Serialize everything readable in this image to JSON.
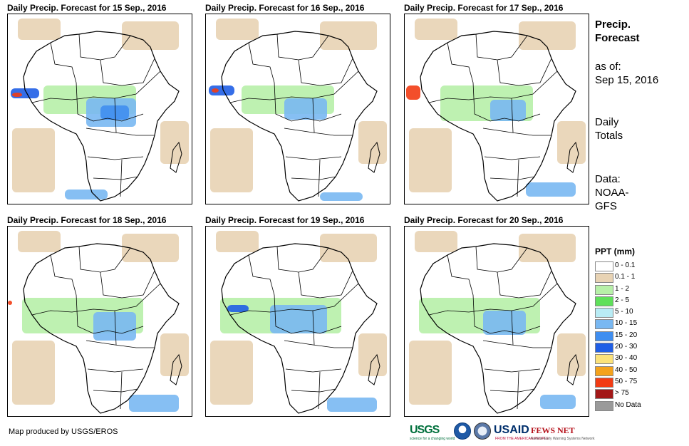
{
  "panels": [
    {
      "title": "Daily Precip. Forecast for 15 Sep., 2016"
    },
    {
      "title": "Daily Precip. Forecast for 16 Sep., 2016"
    },
    {
      "title": "Daily Precip. Forecast for 17 Sep., 2016"
    },
    {
      "title": "Daily Precip. Forecast for 18 Sep., 2016"
    },
    {
      "title": "Daily Precip. Forecast for 19 Sep., 2016"
    },
    {
      "title": "Daily Precip. Forecast for 20 Sep., 2016"
    }
  ],
  "side": {
    "heading_line1": "Precip.",
    "heading_line2": "Forecast",
    "asof_label": "as of:",
    "asof_date": "Sep 15, 2016",
    "totals_line1": "Daily",
    "totals_line2": "Totals",
    "data_line1": "Data:",
    "data_line2": "NOAA-",
    "data_line3": "GFS"
  },
  "legend": {
    "title": "PPT (mm)",
    "items": [
      {
        "label": "0 - 0.1",
        "color": "#ffffff"
      },
      {
        "label": "0.1 - 1",
        "color": "#e8d3b4"
      },
      {
        "label": "1 - 2",
        "color": "#b7f0a8"
      },
      {
        "label": "2 - 5",
        "color": "#5fe05a"
      },
      {
        "label": "5 - 10",
        "color": "#b9ecf5"
      },
      {
        "label": "10 - 15",
        "color": "#79b8f2"
      },
      {
        "label": "15 - 20",
        "color": "#3f8ef0"
      },
      {
        "label": "20 - 30",
        "color": "#1f5ee6"
      },
      {
        "label": "30 - 40",
        "color": "#fbe27a"
      },
      {
        "label": "40 - 50",
        "color": "#f4a21c"
      },
      {
        "label": "50 - 75",
        "color": "#f23c14"
      },
      {
        "label": "> 75",
        "color": "#a31818"
      },
      {
        "label": "No Data",
        "color": "#9a9a9a"
      }
    ]
  },
  "credit": "Map produced by USGS/EROS",
  "logos": {
    "usgs": "USGS",
    "usgs_tagline": "science for a changing world",
    "usaid": "USAID",
    "usaid_tagline": "FROM THE AMERICAN PEOPLE",
    "fews": "FEWS NET",
    "fews_tagline": "Famine Early Warning Systems Network"
  }
}
